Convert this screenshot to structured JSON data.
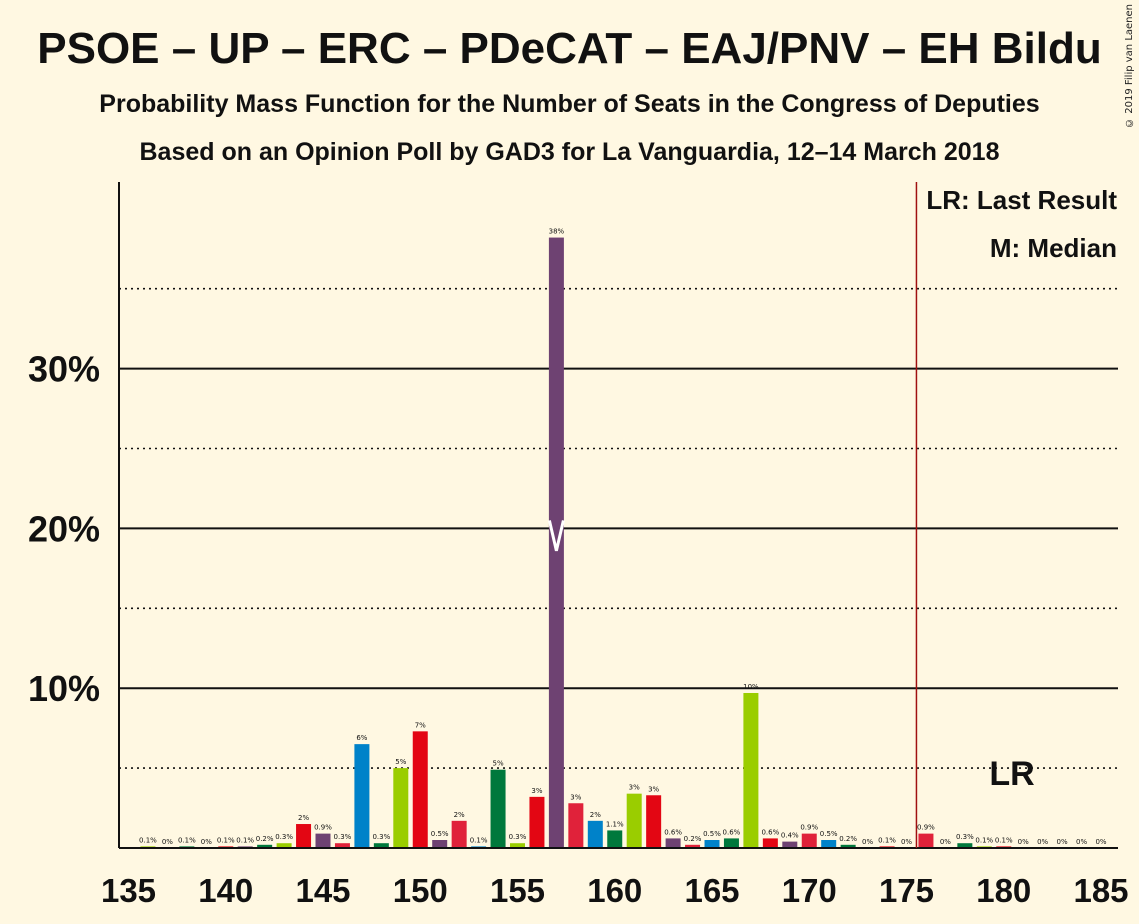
{
  "chart_data": {
    "type": "bar",
    "title": "PSOE – UP – ERC – PDeCAT – EAJ/PNV – EH Bildu",
    "subtitle": "Probability Mass Function for the Number of Seats in the Congress of Deputies",
    "subtitle2": "Based on an Opinion Poll by GAD3 for La Vanguardia, 12–14 March 2018",
    "copyright": "© 2019 Filip van Laenen",
    "legend": [
      "LR: Last Result",
      "M: Median"
    ],
    "lr_label": "LR",
    "last_result": 176,
    "median": 157,
    "xlim": [
      135,
      185
    ],
    "ylim": [
      0,
      41.5
    ],
    "x_ticks": [
      135,
      140,
      145,
      150,
      155,
      160,
      165,
      170,
      175,
      180,
      185
    ],
    "y_ticks": [
      {
        "value": 10,
        "label": "10%"
      },
      {
        "value": 20,
        "label": "20%"
      },
      {
        "value": 30,
        "label": "30%"
      }
    ],
    "dotted_gridlines": [
      5,
      15,
      25,
      35
    ],
    "colors": {
      "PSOE": "#E30613",
      "UP": "#6E4272",
      "ERC": "#9ACD00",
      "PDeCAT": "#0082C9",
      "EAJ/PNV": "#00783C",
      "EH Bildu": "#E0223A",
      "last_result_line": "#A01010",
      "background": "#FFF8E2"
    },
    "bars": [
      {
        "x": 136,
        "value": 0.1,
        "label": "0.1%",
        "color": "#9ACD00"
      },
      {
        "x": 137,
        "value": 0.0,
        "label": "0%",
        "color": "#0082C9"
      },
      {
        "x": 138,
        "value": 0.1,
        "label": "0.1%",
        "color": "#00783C"
      },
      {
        "x": 139,
        "value": 0.0,
        "label": "0%",
        "color": "#E0223A"
      },
      {
        "x": 140,
        "value": 0.1,
        "label": "0.1%",
        "color": "#E30613"
      },
      {
        "x": 141,
        "value": 0.1,
        "label": "0.1%",
        "color": "#6E4272"
      },
      {
        "x": 142,
        "value": 0.2,
        "label": "0.2%",
        "color": "#00783C"
      },
      {
        "x": 143,
        "value": 0.3,
        "label": "0.3%",
        "color": "#9ACD00"
      },
      {
        "x": 144,
        "value": 1.5,
        "label": "2%",
        "color": "#E30613"
      },
      {
        "x": 145,
        "value": 0.9,
        "label": "0.9%",
        "color": "#6E4272"
      },
      {
        "x": 146,
        "value": 0.3,
        "label": "0.3%",
        "color": "#E0223A"
      },
      {
        "x": 147,
        "value": 6.5,
        "label": "6%",
        "color": "#0082C9"
      },
      {
        "x": 148,
        "value": 0.3,
        "label": "0.3%",
        "color": "#00783C"
      },
      {
        "x": 149,
        "value": 5.0,
        "label": "5%",
        "color": "#9ACD00"
      },
      {
        "x": 150,
        "value": 7.3,
        "label": "7%",
        "color": "#E30613"
      },
      {
        "x": 151,
        "value": 0.5,
        "label": "0.5%",
        "color": "#6E4272"
      },
      {
        "x": 152,
        "value": 1.7,
        "label": "2%",
        "color": "#E0223A"
      },
      {
        "x": 153,
        "value": 0.1,
        "label": "0.1%",
        "color": "#0082C9"
      },
      {
        "x": 154,
        "value": 4.9,
        "label": "5%",
        "color": "#00783C"
      },
      {
        "x": 155,
        "value": 0.3,
        "label": "0.3%",
        "color": "#9ACD00"
      },
      {
        "x": 156,
        "value": 3.2,
        "label": "3%",
        "color": "#E30613"
      },
      {
        "x": 157,
        "value": 38.2,
        "label": "38%",
        "color": "#6E4272"
      },
      {
        "x": 158,
        "value": 2.8,
        "label": "3%",
        "color": "#E0223A"
      },
      {
        "x": 159,
        "value": 1.7,
        "label": "2%",
        "color": "#0082C9"
      },
      {
        "x": 160,
        "value": 1.1,
        "label": "1.1%",
        "color": "#00783C"
      },
      {
        "x": 161,
        "value": 3.4,
        "label": "3%",
        "color": "#9ACD00"
      },
      {
        "x": 162,
        "value": 3.3,
        "label": "3%",
        "color": "#E30613"
      },
      {
        "x": 163,
        "value": 0.6,
        "label": "0.6%",
        "color": "#6E4272"
      },
      {
        "x": 164,
        "value": 0.2,
        "label": "0.2%",
        "color": "#E0223A"
      },
      {
        "x": 165,
        "value": 0.5,
        "label": "0.5%",
        "color": "#0082C9"
      },
      {
        "x": 166,
        "value": 0.6,
        "label": "0.6%",
        "color": "#00783C"
      },
      {
        "x": 167,
        "value": 9.7,
        "label": "10%",
        "color": "#9ACD00"
      },
      {
        "x": 168,
        "value": 0.6,
        "label": "0.6%",
        "color": "#E30613"
      },
      {
        "x": 169,
        "value": 0.4,
        "label": "0.4%",
        "color": "#6E4272"
      },
      {
        "x": 170,
        "value": 0.9,
        "label": "0.9%",
        "color": "#E0223A"
      },
      {
        "x": 171,
        "value": 0.5,
        "label": "0.5%",
        "color": "#0082C9"
      },
      {
        "x": 172,
        "value": 0.2,
        "label": "0.2%",
        "color": "#00783C"
      },
      {
        "x": 173,
        "value": 0.0,
        "label": "0%",
        "color": "#9ACD00"
      },
      {
        "x": 174,
        "value": 0.1,
        "label": "0.1%",
        "color": "#E30613"
      },
      {
        "x": 175,
        "value": 0.0,
        "label": "0%",
        "color": "#6E4272"
      },
      {
        "x": 176,
        "value": 0.9,
        "label": "0.9%",
        "color": "#E0223A"
      },
      {
        "x": 177,
        "value": 0.0,
        "label": "0%",
        "color": "#0082C9"
      },
      {
        "x": 178,
        "value": 0.3,
        "label": "0.3%",
        "color": "#00783C"
      },
      {
        "x": 179,
        "value": 0.1,
        "label": "0.1%",
        "color": "#9ACD00"
      },
      {
        "x": 180,
        "value": 0.1,
        "label": "0.1%",
        "color": "#E30613"
      },
      {
        "x": 181,
        "value": 0.0,
        "label": "0%",
        "color": "#6E4272"
      },
      {
        "x": 182,
        "value": 0.0,
        "label": "0%",
        "color": "#E0223A"
      },
      {
        "x": 183,
        "value": 0.0,
        "label": "0%",
        "color": "#0082C9"
      },
      {
        "x": 184,
        "value": 0.0,
        "label": "0%",
        "color": "#00783C"
      },
      {
        "x": 185,
        "value": 0.0,
        "label": "0%",
        "color": "#9ACD00"
      }
    ]
  }
}
